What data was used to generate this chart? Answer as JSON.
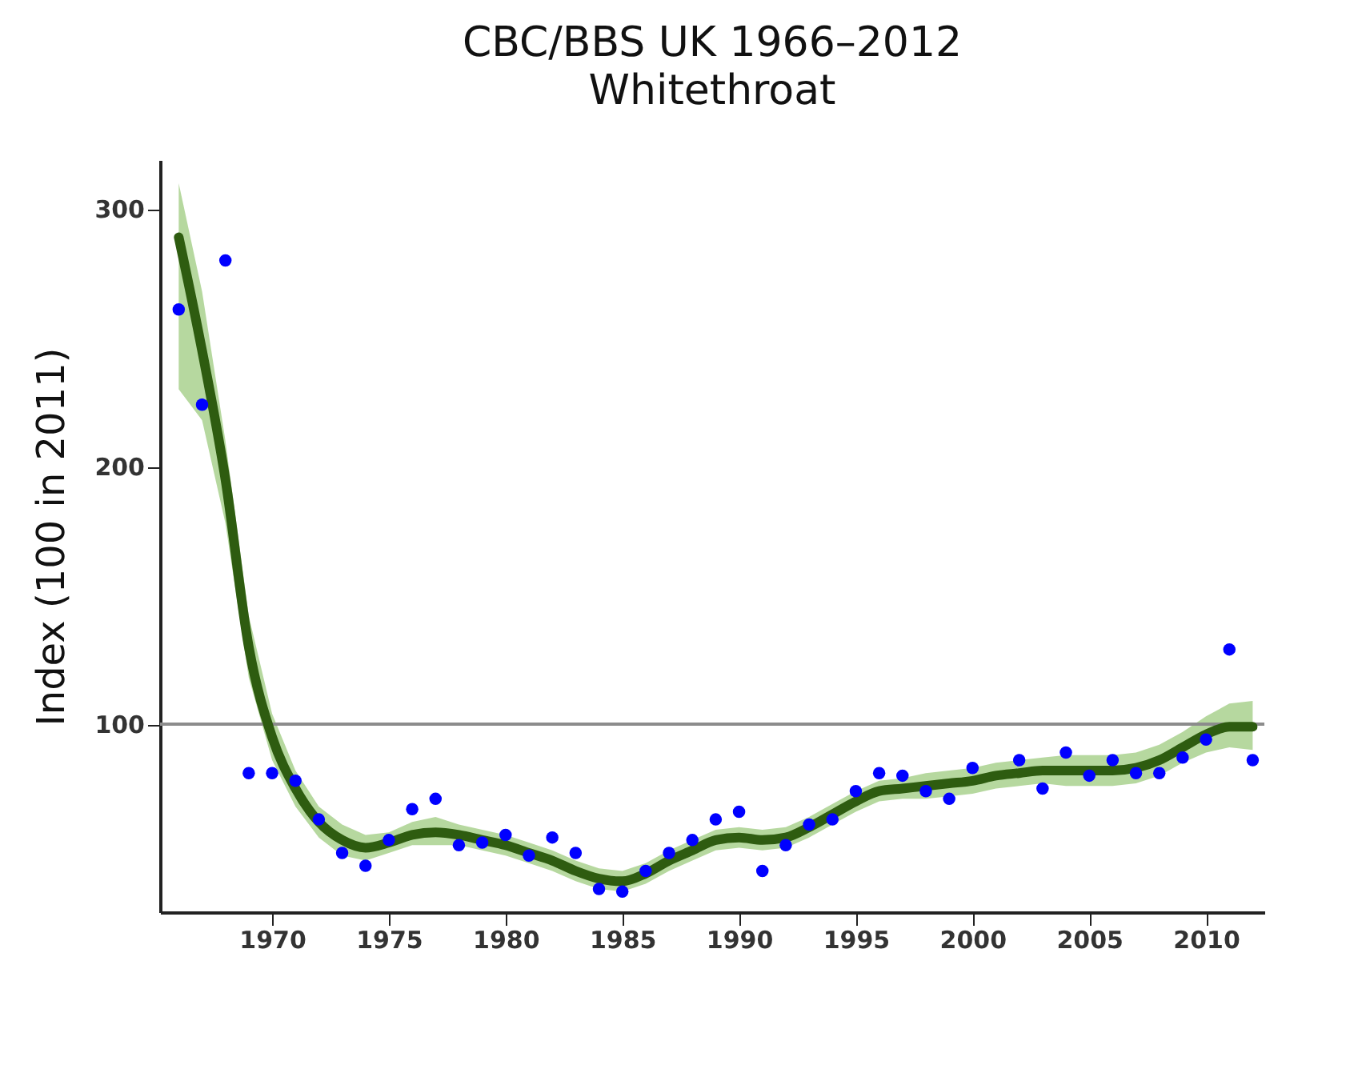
{
  "chart_data": {
    "type": "scatter",
    "title": "CBC/BBS UK 1966–2012",
    "subtitle": "Whitethroat",
    "ylabel": "Index (100 in 2011)",
    "xlim": [
      1965.2,
      2012.5
    ],
    "ylim": [
      27,
      319
    ],
    "xticks": [
      1970,
      1975,
      1980,
      1985,
      1990,
      1995,
      2000,
      2005,
      2010
    ],
    "yticks": [
      100,
      200,
      300
    ],
    "grid": false,
    "legend": false,
    "ref_lines": [
      {
        "axis": "y",
        "value": 100,
        "color": "#8c8c8c"
      }
    ],
    "series": [
      {
        "type": "line",
        "color": "#2e5c10",
        "x": [
          1966,
          1967,
          1968,
          1969,
          1970,
          1971,
          1972,
          1973,
          1974,
          1975,
          1976,
          1977,
          1978,
          1979,
          1980,
          1981,
          1982,
          1983,
          1984,
          1985,
          1986,
          1987,
          1988,
          1989,
          1990,
          1991,
          1992,
          1993,
          1994,
          1995,
          1996,
          1997,
          1998,
          1999,
          2000,
          2001,
          2002,
          2003,
          2004,
          2005,
          2006,
          2007,
          2008,
          2009,
          2010,
          2011,
          2012
        ],
        "values": [
          289,
          245,
          195,
          130,
          95,
          75,
          62,
          55,
          52,
          54,
          57,
          58,
          57,
          55,
          53,
          50,
          47,
          43,
          40,
          39,
          42,
          47,
          51,
          55,
          56,
          55,
          56,
          60,
          65,
          70,
          74,
          75,
          76,
          77,
          78,
          80,
          81,
          82,
          82,
          82,
          82,
          83,
          86,
          91,
          96,
          99,
          99
        ],
        "lower": [
          230,
          218,
          178,
          118,
          86,
          68,
          56,
          49,
          47,
          50,
          53,
          53,
          53,
          51,
          49,
          46,
          43,
          39,
          36,
          35,
          38,
          43,
          47,
          51,
          52,
          51,
          52,
          56,
          61,
          66,
          70,
          71,
          71,
          72,
          73,
          75,
          76,
          77,
          76,
          76,
          76,
          77,
          80,
          85,
          89,
          91,
          90
        ],
        "upper": [
          310,
          268,
          210,
          142,
          104,
          82,
          68,
          61,
          57,
          58,
          62,
          64,
          61,
          59,
          57,
          54,
          51,
          47,
          44,
          43,
          46,
          51,
          55,
          59,
          60,
          59,
          60,
          64,
          69,
          74,
          78,
          79,
          81,
          82,
          83,
          85,
          86,
          87,
          88,
          88,
          88,
          89,
          92,
          97,
          103,
          108,
          109
        ]
      },
      {
        "type": "scatter",
        "color": "#0000ff",
        "marker": "circle",
        "x": [
          1966,
          1967,
          1968,
          1969,
          1970,
          1971,
          1972,
          1973,
          1974,
          1975,
          1976,
          1977,
          1978,
          1979,
          1980,
          1981,
          1982,
          1983,
          1984,
          1985,
          1986,
          1987,
          1988,
          1989,
          1990,
          1991,
          1992,
          1993,
          1994,
          1995,
          1996,
          1997,
          1998,
          1999,
          2000,
          2001,
          2002,
          2003,
          2004,
          2005,
          2006,
          2007,
          2008,
          2009,
          2010,
          2011,
          2012
        ],
        "values": [
          261,
          224,
          280,
          81,
          81,
          78,
          63,
          50,
          45,
          55,
          67,
          71,
          53,
          54,
          57,
          49,
          56,
          50,
          36,
          35,
          43,
          50,
          55,
          63,
          66,
          43,
          53,
          61,
          63,
          74,
          81,
          80,
          74,
          71,
          83,
          null,
          86,
          75,
          89,
          80,
          86,
          81,
          81,
          87,
          94,
          129,
          86
        ]
      }
    ]
  }
}
